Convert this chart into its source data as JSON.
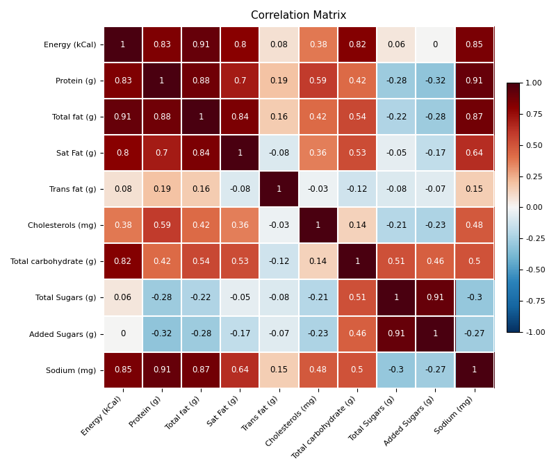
{
  "title": "Correlation Matrix",
  "labels": [
    "Energy (kCal)",
    "Protein (g)",
    "Total fat (g)",
    "Sat Fat (g)",
    "Trans fat (g)",
    "Cholesterols (mg)",
    "Total carbohydrate (g)",
    "Total Sugars (g)",
    "Added Sugars (g)",
    "Sodium (mg)"
  ],
  "matrix": [
    [
      1.0,
      0.83,
      0.91,
      0.8,
      0.08,
      0.38,
      0.82,
      0.06,
      0.0,
      0.85
    ],
    [
      0.83,
      1.0,
      0.88,
      0.7,
      0.19,
      0.59,
      0.42,
      -0.28,
      -0.32,
      0.91
    ],
    [
      0.91,
      0.88,
      1.0,
      0.84,
      0.16,
      0.42,
      0.54,
      -0.22,
      -0.28,
      0.87
    ],
    [
      0.8,
      0.7,
      0.84,
      1.0,
      -0.08,
      0.36,
      0.53,
      -0.05,
      -0.17,
      0.64
    ],
    [
      0.08,
      0.19,
      0.16,
      -0.08,
      1.0,
      -0.03,
      -0.12,
      -0.08,
      -0.07,
      0.15
    ],
    [
      0.38,
      0.59,
      0.42,
      0.36,
      -0.03,
      1.0,
      0.14,
      -0.21,
      -0.23,
      0.48
    ],
    [
      0.82,
      0.42,
      0.54,
      0.53,
      -0.12,
      0.14,
      1.0,
      0.51,
      0.46,
      0.5
    ],
    [
      0.06,
      -0.28,
      -0.22,
      -0.05,
      -0.08,
      -0.21,
      0.51,
      1.0,
      0.91,
      -0.3
    ],
    [
      0.0,
      -0.32,
      -0.28,
      -0.17,
      -0.07,
      -0.23,
      0.46,
      0.91,
      1.0,
      -0.27
    ],
    [
      0.85,
      0.91,
      0.87,
      0.64,
      0.15,
      0.48,
      0.5,
      -0.3,
      -0.27,
      1.0
    ]
  ],
  "vmin": -1.0,
  "vmax": 1.0,
  "colormap_colors": [
    [
      0.0,
      "#053061"
    ],
    [
      0.1,
      "#1565a0"
    ],
    [
      0.2,
      "#2b83ba"
    ],
    [
      0.3,
      "#74b6d1"
    ],
    [
      0.4,
      "#b8d9e8"
    ],
    [
      0.5,
      "#f5f5f5"
    ],
    [
      0.6,
      "#f4c2a1"
    ],
    [
      0.7,
      "#e0704a"
    ],
    [
      0.8,
      "#c0392b"
    ],
    [
      0.9,
      "#8b0000"
    ],
    [
      1.0,
      "#4a0010"
    ]
  ],
  "cell_text_fontsize": 8.5,
  "title_fontsize": 11,
  "tick_fontsize": 8,
  "xlabel_rotation": 45,
  "figsize": [
    8.0,
    6.78
  ],
  "dpi": 100,
  "colorbar_tick_fontsize": 8,
  "background_color": "#ffffff",
  "grid_color": "#ffffff",
  "grid_linewidth": 1.5,
  "colorbar_ticks": [
    1.0,
    0.75,
    0.5,
    0.25,
    0.0,
    -0.25,
    -0.5,
    -0.75,
    -1.0
  ],
  "colorbar_ticklabels": [
    "1.00",
    "0.75",
    "0.50",
    "0.25",
    "0.00",
    "-0.25",
    "-0.50",
    "-0.75",
    "-1.00"
  ]
}
